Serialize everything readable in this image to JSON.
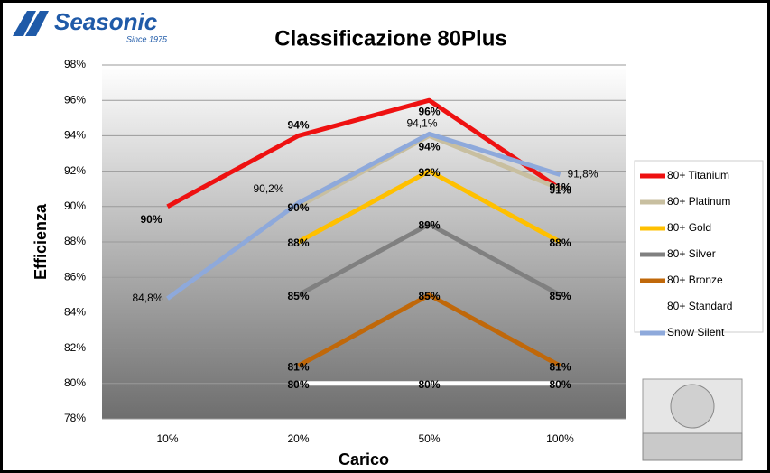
{
  "chart_data": {
    "type": "line",
    "logo": {
      "name": "Seasonic",
      "tagline": "Since 1975"
    },
    "title": "Classificazione 80Plus",
    "y_label": "Efficienza",
    "x_label": "Carico",
    "categories": [
      "10%",
      "20%",
      "50%",
      "100%"
    ],
    "ylim": [
      78,
      98
    ],
    "yticks": [
      {
        "value": 78,
        "label": "78%"
      },
      {
        "value": 80,
        "label": "80%"
      },
      {
        "value": 82,
        "label": "82%"
      },
      {
        "value": 84,
        "label": "84%"
      },
      {
        "value": 86,
        "label": "86%"
      },
      {
        "value": 88,
        "label": "88%"
      },
      {
        "value": 90,
        "label": "90%"
      },
      {
        "value": 92,
        "label": "92%"
      },
      {
        "value": 94,
        "label": "94%"
      },
      {
        "value": 96,
        "label": "96%"
      },
      {
        "value": 98,
        "label": "98%"
      }
    ],
    "grid": true,
    "legend": "right",
    "series": [
      {
        "name": "80+ Titanium",
        "color": "#ee1111",
        "values": [
          90,
          94,
          96,
          91
        ],
        "value_labels": [
          "90%",
          "94%",
          "96%",
          "91%"
        ]
      },
      {
        "name": "80+ Platinum",
        "color": "#c8bfa0",
        "values": [
          null,
          90,
          94,
          91
        ],
        "value_labels": [
          null,
          "90%",
          "94%",
          "91%"
        ]
      },
      {
        "name": "80+ Gold",
        "color": "#ffc000",
        "values": [
          null,
          88,
          92,
          88
        ],
        "value_labels": [
          null,
          "88%",
          "92%",
          "88%"
        ]
      },
      {
        "name": "80+ Silver",
        "color": "#808080",
        "values": [
          null,
          85,
          89,
          85
        ],
        "value_labels": [
          null,
          "85%",
          "89%",
          "85%"
        ]
      },
      {
        "name": "80+ Bronze",
        "color": "#c0680a",
        "values": [
          null,
          81,
          85,
          81
        ],
        "value_labels": [
          null,
          "81%",
          "85%",
          "81%"
        ]
      },
      {
        "name": "80+ Standard",
        "color": "#ffffff",
        "values": [
          null,
          80,
          80,
          80
        ],
        "value_labels": [
          null,
          "80%",
          "80%",
          "80%"
        ]
      },
      {
        "name": "Snow Silent",
        "color": "#8ea9db",
        "values": [
          84.8,
          90.2,
          94.1,
          91.8
        ],
        "value_labels": [
          "84,8%",
          "90,2%",
          "94,1%",
          "91,8%"
        ]
      }
    ]
  }
}
